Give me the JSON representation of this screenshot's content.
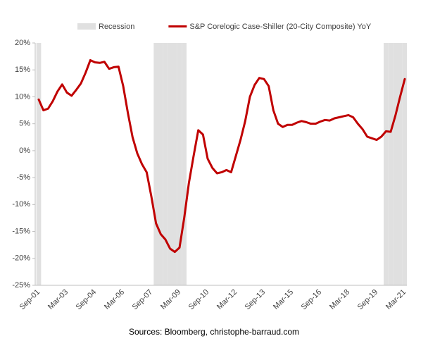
{
  "chart_data": {
    "type": "line",
    "source": "Sources: Bloomberg, christophe-barraud.com",
    "categories": [
      "Sep-01",
      null,
      null,
      null,
      null,
      null,
      "Mar-03",
      null,
      null,
      null,
      null,
      null,
      "Sep-04",
      null,
      null,
      null,
      null,
      null,
      "Mar-06",
      null,
      null,
      null,
      null,
      null,
      "Sep-07",
      null,
      null,
      null,
      null,
      null,
      "Mar-09",
      null,
      null,
      null,
      null,
      null,
      "Sep-10",
      null,
      null,
      null,
      null,
      null,
      "Mar-12",
      null,
      null,
      null,
      null,
      null,
      "Sep-13",
      null,
      null,
      null,
      null,
      null,
      "Mar-15",
      null,
      null,
      null,
      null,
      null,
      "Sep-16",
      null,
      null,
      null,
      null,
      null,
      "Mar-18",
      null,
      null,
      null,
      null,
      null,
      "Sep-19",
      null,
      null,
      null,
      null,
      null,
      "Mar-21"
    ],
    "series": [
      {
        "name": "Recession",
        "type": "band",
        "color": "#e0e0e0",
        "values": [
          1,
          null,
          null,
          null,
          null,
          null,
          null,
          null,
          null,
          null,
          null,
          null,
          null,
          null,
          null,
          null,
          null,
          null,
          null,
          null,
          null,
          null,
          null,
          null,
          null,
          1,
          1,
          1,
          1,
          1,
          1,
          1,
          null,
          null,
          null,
          null,
          null,
          null,
          null,
          null,
          null,
          null,
          null,
          null,
          null,
          null,
          null,
          null,
          null,
          null,
          null,
          null,
          null,
          null,
          null,
          null,
          null,
          null,
          null,
          null,
          null,
          null,
          null,
          null,
          null,
          null,
          null,
          null,
          null,
          null,
          null,
          null,
          null,
          null,
          1,
          1,
          1,
          1,
          1
        ]
      },
      {
        "name": "S&P Corelogic Case-Shiller (20-City Composite) YoY",
        "type": "line",
        "color": "#c00000",
        "values": [
          9.5,
          7.5,
          7.8,
          9.2,
          11,
          12.3,
          10.8,
          10.2,
          11.3,
          12.5,
          14.5,
          16.8,
          16.4,
          16.3,
          16.5,
          15.2,
          15.5,
          15.6,
          12.0,
          7.0,
          2.5,
          -0.5,
          -2.5,
          -4.0,
          -8.5,
          -13.5,
          -15.5,
          -16.5,
          -18.2,
          -18.8,
          -18.0,
          -12.5,
          -6.0,
          -1.0,
          3.8,
          3.0,
          -1.5,
          -3.2,
          -4.2,
          -4.0,
          -3.6,
          -4.0,
          -1.0,
          2.0,
          5.5,
          10.0,
          12.2,
          13.5,
          13.3,
          12.0,
          7.5,
          5.0,
          4.4,
          4.8,
          4.8,
          5.2,
          5.5,
          5.3,
          5.0,
          5.0,
          5.4,
          5.7,
          5.6,
          6.0,
          6.2,
          6.4,
          6.6,
          6.2,
          5.0,
          4.0,
          2.6,
          2.3,
          2.0,
          2.6,
          3.6,
          3.5,
          6.5,
          10.0,
          13.3
        ]
      }
    ],
    "ylim": [
      -25,
      20
    ],
    "yticks": [
      {
        "value": -25,
        "label": "-25%"
      },
      {
        "value": -20,
        "label": "-20%"
      },
      {
        "value": -15,
        "label": "-15%"
      },
      {
        "value": -10,
        "label": "-10%"
      },
      {
        "value": -5,
        "label": "-5%"
      },
      {
        "value": 0,
        "label": "0%"
      },
      {
        "value": 5,
        "label": "5%"
      },
      {
        "value": 10,
        "label": "10%"
      },
      {
        "value": 15,
        "label": "15%"
      },
      {
        "value": 20,
        "label": "20%"
      }
    ],
    "grid": false
  }
}
